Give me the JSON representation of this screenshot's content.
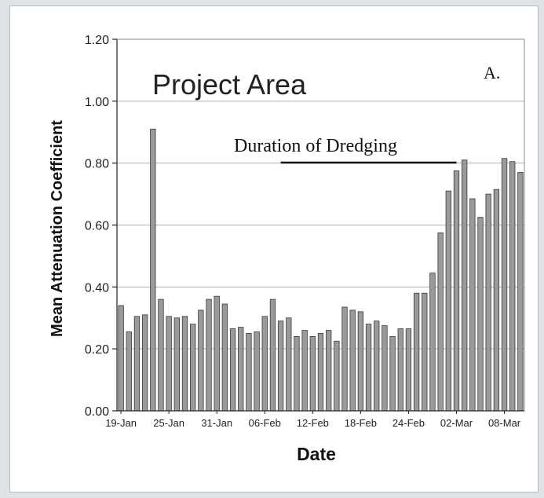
{
  "chart_data": {
    "type": "bar",
    "title": "Project Area",
    "panel_label": "A.",
    "annotation": "Duration of Dredging",
    "xlabel": "Date",
    "ylabel": "Mean Attenuation Coefficient",
    "ylim": [
      0,
      1.2
    ],
    "yticks": [
      "0.00",
      "0.20",
      "0.40",
      "0.60",
      "0.80",
      "1.00",
      "1.20"
    ],
    "grid": true,
    "xtick_labels": [
      "19-Jan",
      "25-Jan",
      "31-Jan",
      "06-Feb",
      "12-Feb",
      "18-Feb",
      "24-Feb",
      "02-Mar",
      "08-Mar"
    ],
    "xtick_every": 6,
    "values": [
      0.34,
      0.255,
      0.305,
      0.31,
      0.91,
      0.36,
      0.305,
      0.3,
      0.305,
      0.28,
      0.325,
      0.36,
      0.37,
      0.345,
      0.265,
      0.27,
      0.25,
      0.255,
      0.305,
      0.36,
      0.29,
      0.3,
      0.24,
      0.26,
      0.24,
      0.25,
      0.26,
      0.225,
      0.335,
      0.325,
      0.32,
      0.28,
      0.29,
      0.275,
      0.24,
      0.265,
      0.265,
      0.38,
      0.38,
      0.445,
      0.575,
      0.71,
      0.775,
      0.81,
      0.685,
      0.625,
      0.7,
      0.715,
      0.815,
      0.805,
      0.77
    ],
    "dredging_span": [
      20,
      42
    ],
    "colors": {
      "bar_fill": "#9a9a9a",
      "bar_stroke": "#3a3a3a",
      "grid": "#b0b0b0"
    }
  }
}
